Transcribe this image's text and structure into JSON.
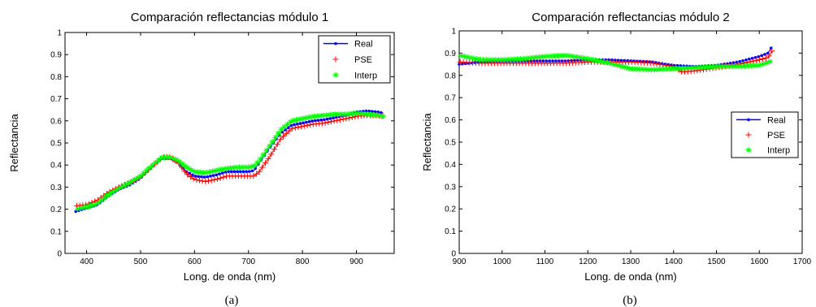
{
  "chart_data": [
    {
      "type": "line",
      "title": "Comparación reflectancias módulo 1",
      "xlabel": "Long. de onda (nm)",
      "ylabel": "Reflectancia",
      "caption": "(a)",
      "xlim": [
        360,
        970
      ],
      "ylim": [
        0,
        1
      ],
      "xticks": [
        400,
        500,
        600,
        700,
        800,
        900
      ],
      "yticks": [
        0,
        0.1,
        0.2,
        0.3,
        0.4,
        0.5,
        0.6,
        0.7,
        0.8,
        0.9,
        1
      ],
      "legend_position": "top-right",
      "series": [
        {
          "name": "Real",
          "color": "#0000ff",
          "marker": "dot",
          "points": [
            [
              380,
              0.19
            ],
            [
              400,
              0.205
            ],
            [
              420,
              0.22
            ],
            [
              440,
              0.26
            ],
            [
              460,
              0.29
            ],
            [
              480,
              0.31
            ],
            [
              500,
              0.34
            ],
            [
              520,
              0.39
            ],
            [
              540,
              0.43
            ],
            [
              555,
              0.43
            ],
            [
              570,
              0.41
            ],
            [
              585,
              0.37
            ],
            [
              600,
              0.35
            ],
            [
              620,
              0.345
            ],
            [
              640,
              0.355
            ],
            [
              660,
              0.37
            ],
            [
              680,
              0.37
            ],
            [
              700,
              0.37
            ],
            [
              710,
              0.375
            ],
            [
              720,
              0.41
            ],
            [
              740,
              0.48
            ],
            [
              760,
              0.545
            ],
            [
              780,
              0.58
            ],
            [
              800,
              0.59
            ],
            [
              820,
              0.6
            ],
            [
              840,
              0.605
            ],
            [
              860,
              0.615
            ],
            [
              880,
              0.625
            ],
            [
              900,
              0.64
            ],
            [
              920,
              0.645
            ],
            [
              940,
              0.64
            ],
            [
              950,
              0.635
            ]
          ]
        },
        {
          "name": "PSE",
          "color": "#ff0000",
          "marker": "plus",
          "points": [
            [
              380,
              0.215
            ],
            [
              400,
              0.22
            ],
            [
              420,
              0.24
            ],
            [
              440,
              0.275
            ],
            [
              460,
              0.3
            ],
            [
              480,
              0.32
            ],
            [
              500,
              0.345
            ],
            [
              520,
              0.39
            ],
            [
              540,
              0.435
            ],
            [
              555,
              0.435
            ],
            [
              570,
              0.41
            ],
            [
              585,
              0.36
            ],
            [
              600,
              0.335
            ],
            [
              620,
              0.325
            ],
            [
              640,
              0.335
            ],
            [
              660,
              0.35
            ],
            [
              680,
              0.35
            ],
            [
              700,
              0.35
            ],
            [
              710,
              0.35
            ],
            [
              720,
              0.37
            ],
            [
              740,
              0.44
            ],
            [
              760,
              0.52
            ],
            [
              780,
              0.565
            ],
            [
              800,
              0.575
            ],
            [
              820,
              0.585
            ],
            [
              840,
              0.59
            ],
            [
              860,
              0.6
            ],
            [
              880,
              0.61
            ],
            [
              900,
              0.62
            ],
            [
              920,
              0.625
            ],
            [
              940,
              0.625
            ],
            [
              950,
              0.62
            ]
          ]
        },
        {
          "name": "Interp",
          "color": "#00ff00",
          "marker": "star",
          "points": [
            [
              380,
              0.2
            ],
            [
              400,
              0.21
            ],
            [
              420,
              0.225
            ],
            [
              440,
              0.265
            ],
            [
              460,
              0.295
            ],
            [
              480,
              0.32
            ],
            [
              500,
              0.35
            ],
            [
              520,
              0.395
            ],
            [
              540,
              0.435
            ],
            [
              555,
              0.435
            ],
            [
              570,
              0.42
            ],
            [
              585,
              0.39
            ],
            [
              600,
              0.37
            ],
            [
              620,
              0.365
            ],
            [
              640,
              0.375
            ],
            [
              660,
              0.385
            ],
            [
              680,
              0.39
            ],
            [
              700,
              0.39
            ],
            [
              710,
              0.395
            ],
            [
              720,
              0.42
            ],
            [
              740,
              0.49
            ],
            [
              760,
              0.56
            ],
            [
              780,
              0.6
            ],
            [
              800,
              0.61
            ],
            [
              820,
              0.62
            ],
            [
              840,
              0.625
            ],
            [
              860,
              0.63
            ],
            [
              880,
              0.63
            ],
            [
              900,
              0.635
            ],
            [
              920,
              0.63
            ],
            [
              940,
              0.625
            ],
            [
              950,
              0.62
            ]
          ]
        }
      ]
    },
    {
      "type": "line",
      "title": "Comparación reflectancias módulo 2",
      "xlabel": "Long. de onda (nm)",
      "ylabel": "Reflectancia",
      "caption": "(b)",
      "xlim": [
        900,
        1700
      ],
      "ylim": [
        0,
        1
      ],
      "xticks": [
        900,
        1000,
        1100,
        1200,
        1300,
        1400,
        1500,
        1600,
        1700
      ],
      "yticks": [
        0,
        0.1,
        0.2,
        0.3,
        0.4,
        0.5,
        0.6,
        0.7,
        0.8,
        0.9,
        1
      ],
      "legend_position": "right",
      "series": [
        {
          "name": "Real",
          "color": "#0000ff",
          "marker": "dot",
          "points": [
            [
              900,
              0.85
            ],
            [
              950,
              0.86
            ],
            [
              1000,
              0.865
            ],
            [
              1050,
              0.865
            ],
            [
              1100,
              0.865
            ],
            [
              1150,
              0.865
            ],
            [
              1200,
              0.87
            ],
            [
              1250,
              0.87
            ],
            [
              1300,
              0.865
            ],
            [
              1350,
              0.86
            ],
            [
              1380,
              0.85
            ],
            [
              1400,
              0.845
            ],
            [
              1450,
              0.84
            ],
            [
              1500,
              0.845
            ],
            [
              1550,
              0.86
            ],
            [
              1580,
              0.875
            ],
            [
              1600,
              0.885
            ],
            [
              1620,
              0.9
            ],
            [
              1630,
              0.93
            ]
          ]
        },
        {
          "name": "PSE",
          "color": "#ff0000",
          "marker": "plus",
          "points": [
            [
              900,
              0.86
            ],
            [
              950,
              0.855
            ],
            [
              1000,
              0.855
            ],
            [
              1050,
              0.855
            ],
            [
              1100,
              0.855
            ],
            [
              1150,
              0.855
            ],
            [
              1200,
              0.86
            ],
            [
              1250,
              0.86
            ],
            [
              1300,
              0.86
            ],
            [
              1350,
              0.855
            ],
            [
              1400,
              0.84
            ],
            [
              1420,
              0.815
            ],
            [
              1450,
              0.82
            ],
            [
              1500,
              0.835
            ],
            [
              1550,
              0.85
            ],
            [
              1600,
              0.87
            ],
            [
              1620,
              0.88
            ],
            [
              1630,
              0.91
            ]
          ]
        },
        {
          "name": "Interp",
          "color": "#00ff00",
          "marker": "star",
          "points": [
            [
              900,
              0.89
            ],
            [
              950,
              0.87
            ],
            [
              1000,
              0.87
            ],
            [
              1050,
              0.875
            ],
            [
              1100,
              0.885
            ],
            [
              1150,
              0.89
            ],
            [
              1200,
              0.875
            ],
            [
              1250,
              0.855
            ],
            [
              1300,
              0.83
            ],
            [
              1350,
              0.825
            ],
            [
              1400,
              0.83
            ],
            [
              1450,
              0.835
            ],
            [
              1500,
              0.84
            ],
            [
              1550,
              0.84
            ],
            [
              1600,
              0.845
            ],
            [
              1630,
              0.865
            ]
          ]
        }
      ]
    }
  ]
}
